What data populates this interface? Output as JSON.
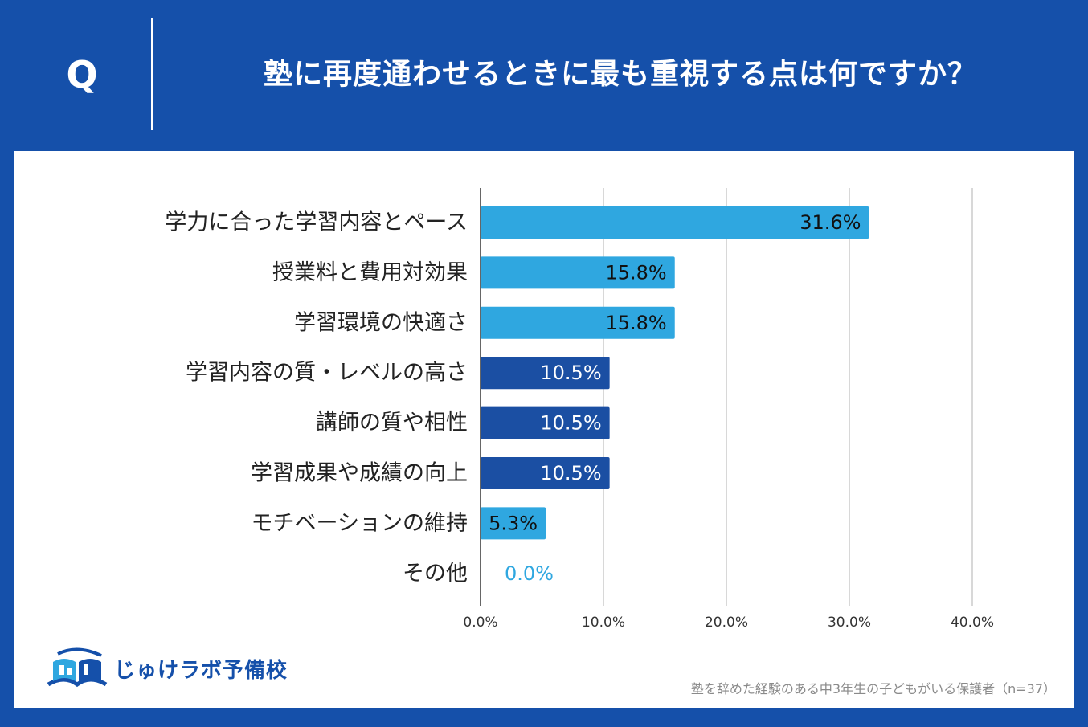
{
  "header": {
    "q_letter": "Q",
    "question": "塾に再度通わせるときに最も重視する点は何ですか？"
  },
  "colors": {
    "background": "#1550aa",
    "light_bar": "#2fa7e0",
    "dark_bar": "#1b4fa3",
    "grid": "#cccccc",
    "axis": "#333333"
  },
  "chart_data": {
    "type": "bar",
    "orientation": "horizontal",
    "categories": [
      "学力に合った学習内容とペース",
      "授業料と費用対効果",
      "学習環境の快適さ",
      "学習内容の質・レベルの高さ",
      "講師の質や相性",
      "学習成果や成績の向上",
      "モチベーションの維持",
      "その他"
    ],
    "values": [
      31.6,
      15.8,
      15.8,
      10.5,
      10.5,
      10.5,
      5.3,
      0.0
    ],
    "value_labels": [
      "31.6%",
      "15.8%",
      "15.8%",
      "10.5%",
      "10.5%",
      "10.5%",
      "5.3%",
      "0.0%"
    ],
    "bar_colors": [
      "#2fa7e0",
      "#2fa7e0",
      "#2fa7e0",
      "#1b4fa3",
      "#1b4fa3",
      "#1b4fa3",
      "#2fa7e0",
      "#2fa7e0"
    ],
    "xlim": [
      0,
      40
    ],
    "xticks": [
      0,
      10,
      20,
      30,
      40
    ],
    "xtick_labels": [
      "0.0%",
      "10.0%",
      "20.0%",
      "30.0%",
      "40.0%"
    ],
    "grid": true
  },
  "logo": {
    "text": "じゅけラボ予備校",
    "icon": "open-book-icon"
  },
  "footnote": "塾を辞めた経験のある中3年生の子どもがいる保護者（n=37）"
}
